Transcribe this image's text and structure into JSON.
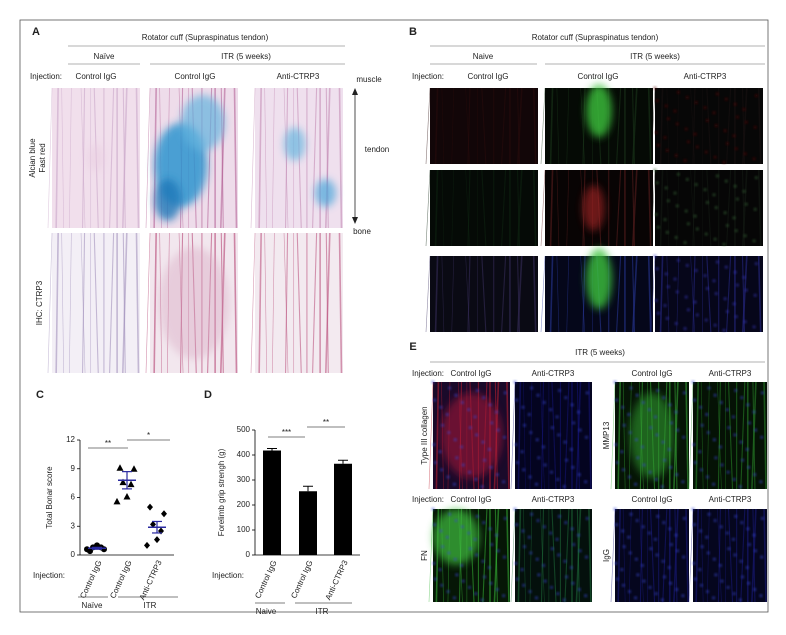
{
  "panel_a": {
    "letter": "A",
    "title": "Rotator cuff (Supraspinatus tendon)",
    "groups": [
      "Naïve",
      "ITR (5 weeks)"
    ],
    "injection_label": "Injection:",
    "columns": [
      "Control IgG",
      "Control IgG",
      "Anti-CTRP3"
    ],
    "row_labels": [
      [
        "Alcian blue",
        "Fast red"
      ],
      [
        "IHC: CTRP3"
      ]
    ],
    "axis_labels": [
      "muscle",
      "tendon",
      "bone"
    ]
  },
  "panel_b": {
    "letter": "B",
    "title": "Rotator cuff (Supraspinatus tendon)",
    "groups": [
      "Naive",
      "ITR (5 weeks)"
    ],
    "injection_label": "Injection:",
    "columns": [
      "Control IgG",
      "Control IgG",
      "Anti-CTRP3"
    ]
  },
  "chart_data": [
    {
      "type": "dot",
      "panel": "C",
      "y_label": "Total Bonar score",
      "categories": [
        "Control IgG",
        "Control IgG",
        "Anti-CTRP3"
      ],
      "points": [
        [
          0.4,
          0.6,
          0.8,
          0.8,
          1.0,
          0.6
        ],
        [
          9.1,
          9.0,
          7.6,
          7.4,
          6.1,
          5.6
        ],
        [
          5.0,
          4.3,
          3.2,
          2.5,
          1.6,
          1.0
        ]
      ],
      "means": [
        0.7,
        7.8,
        2.9
      ],
      "errors": [
        0.1,
        0.9,
        0.6
      ],
      "markers": [
        "circle",
        "triangle",
        "diamond"
      ],
      "color": "#000000",
      "ylim": [
        0,
        12
      ],
      "yticks": [
        0,
        3,
        6,
        9,
        12
      ],
      "annotations": [
        "**",
        "*"
      ],
      "injection_label": "Injection:",
      "group_labels": [
        "Naïve",
        "ITR"
      ]
    },
    {
      "type": "bar",
      "panel": "D",
      "y_label": "Forelimb grip strengh (g)",
      "categories": [
        "Control IgG",
        "Control IgG",
        "Anti-CTRP3"
      ],
      "values": [
        418,
        255,
        365
      ],
      "errors": [
        8,
        20,
        14
      ],
      "color": "#000000",
      "ylim": [
        0,
        500
      ],
      "yticks": [
        0,
        100,
        200,
        300,
        400,
        500
      ],
      "annotations": [
        "***",
        "**"
      ],
      "injection_label": "Injection:",
      "group_labels": [
        "Naive",
        "ITR"
      ]
    }
  ],
  "panel_e": {
    "letter": "E",
    "title": "ITR (5 weeks)",
    "blocks": [
      {
        "injection_label": "Injection:",
        "columns": [
          "Control IgG",
          "Anti-CTRP3"
        ],
        "row_label": "Type III collagen"
      },
      {
        "columns": [
          "Control IgG",
          "Anti-CTRP3"
        ],
        "row_label": "MMP13"
      },
      {
        "injection_label": "Injection:",
        "columns": [
          "Control IgG",
          "Anti-CTRP3"
        ],
        "row_label": "FN"
      },
      {
        "columns": [
          "Control IgG",
          "Anti-CTRP3"
        ],
        "row_label": "IgG"
      }
    ]
  }
}
